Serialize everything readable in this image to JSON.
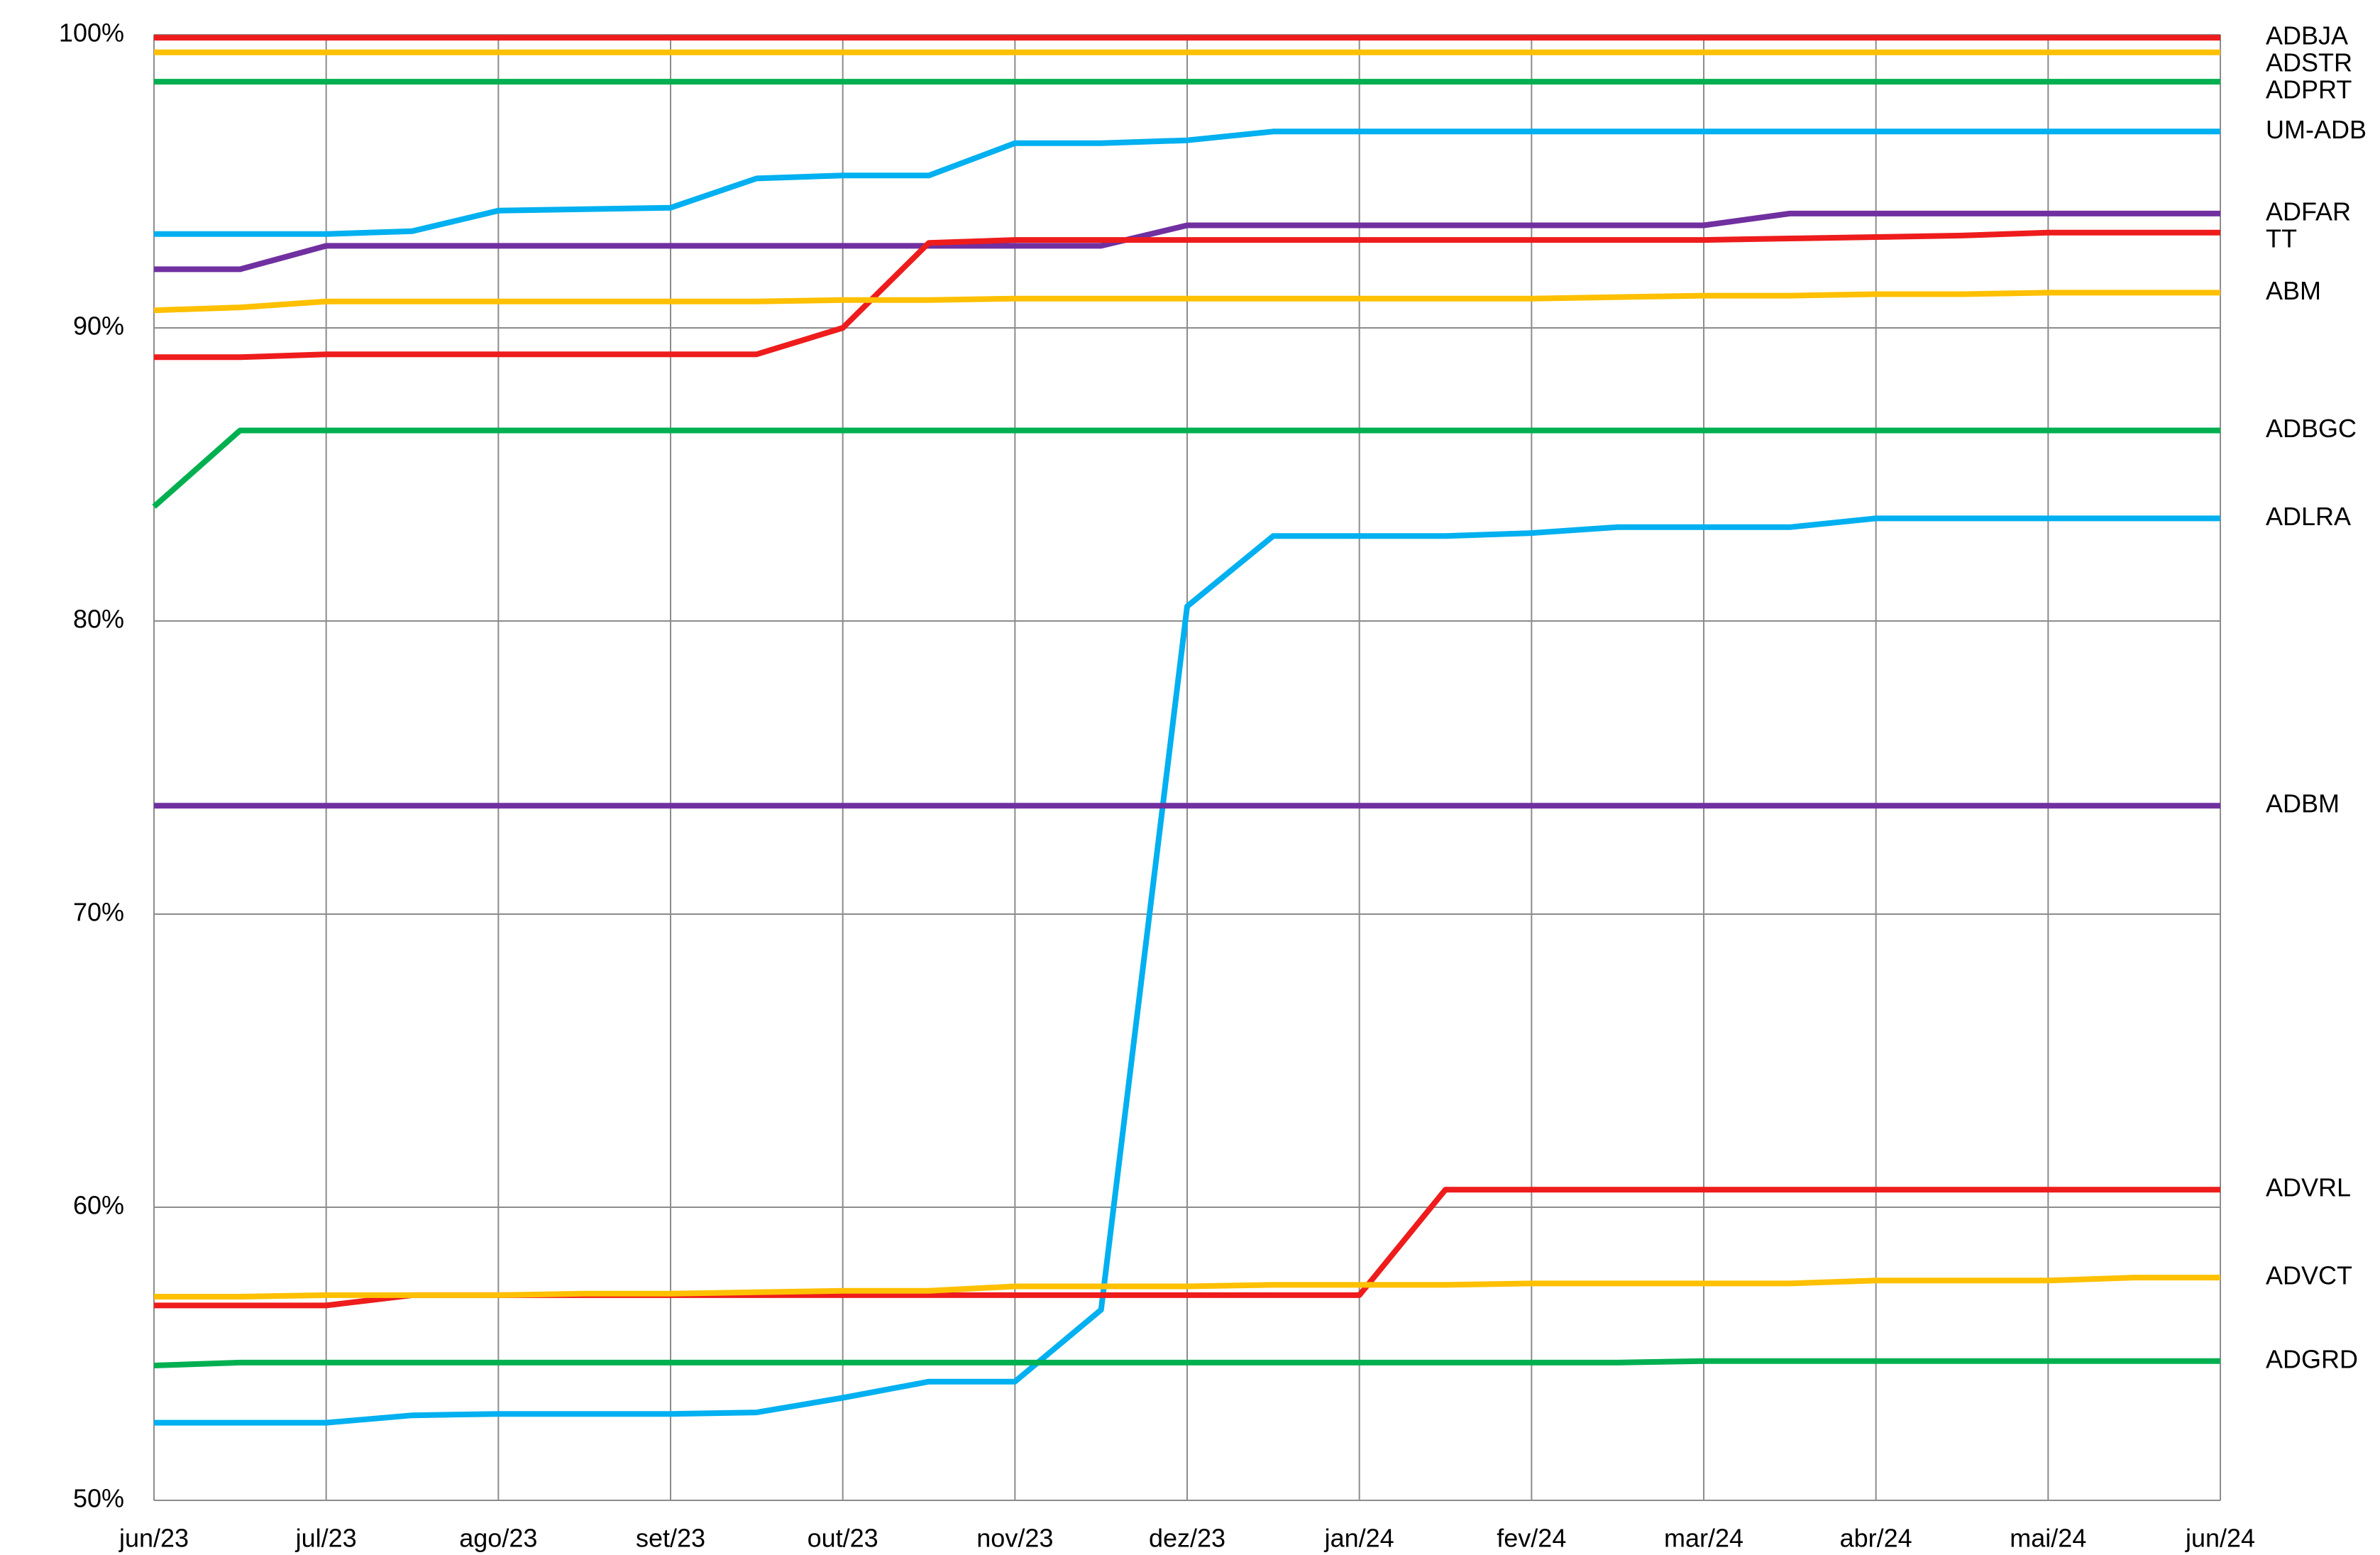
{
  "chart_data": {
    "type": "line",
    "categories": [
      "jun/23",
      null,
      "jul/23",
      null,
      "ago/23",
      null,
      "set/23",
      null,
      "out/23",
      null,
      "nov/23",
      null,
      "dez/23",
      null,
      "jan/24",
      null,
      "fev/24",
      null,
      "mar/24",
      null,
      "abr/24",
      null,
      "mai/24",
      null,
      "jun/24"
    ],
    "ylim": [
      50,
      100
    ],
    "yticks": [
      {
        "value": 50,
        "label": "50%"
      },
      {
        "value": 60,
        "label": "60%"
      },
      {
        "value": 70,
        "label": "70%"
      },
      {
        "value": 80,
        "label": "80%"
      },
      {
        "value": 90,
        "label": "90%"
      },
      {
        "value": 100,
        "label": "100%"
      }
    ],
    "grid": true,
    "series": [
      {
        "name": "ADBJA",
        "color": "#ee1c1c",
        "values": [
          99.9,
          99.9,
          99.9,
          99.9,
          99.9,
          99.9,
          99.9,
          99.9,
          99.9,
          99.9,
          99.9,
          99.9,
          99.9,
          99.9,
          99.9,
          99.9,
          99.9,
          99.9,
          99.9,
          99.9,
          99.9,
          99.9,
          99.9,
          99.9,
          99.9
        ]
      },
      {
        "name": "ADSTR",
        "color": "#ffc000",
        "values": [
          99.4,
          99.4,
          99.4,
          99.4,
          99.4,
          99.4,
          99.4,
          99.4,
          99.4,
          99.4,
          99.4,
          99.4,
          99.4,
          99.4,
          99.4,
          99.4,
          99.4,
          99.4,
          99.4,
          99.4,
          99.4,
          99.4,
          99.4,
          99.4,
          99.4
        ]
      },
      {
        "name": "ADPRT",
        "color": "#00b050",
        "values": [
          98.4,
          98.4,
          98.4,
          98.4,
          98.4,
          98.4,
          98.4,
          98.4,
          98.4,
          98.4,
          98.4,
          98.4,
          98.4,
          98.4,
          98.4,
          98.4,
          98.4,
          98.4,
          98.4,
          98.4,
          98.4,
          98.4,
          98.4,
          98.4,
          98.4
        ]
      },
      {
        "name": "UM-ADB",
        "color": "#00b0f0",
        "values": [
          93.2,
          93.2,
          93.2,
          93.3,
          94.0,
          94.05,
          94.1,
          95.1,
          95.2,
          95.2,
          96.3,
          96.3,
          96.4,
          96.7,
          96.7,
          96.7,
          96.7,
          96.7,
          96.7,
          96.7,
          96.7,
          96.7,
          96.7,
          96.7,
          96.7
        ]
      },
      {
        "name": "ADFAR",
        "color": "#7030a0",
        "values": [
          92.0,
          92.0,
          92.8,
          92.8,
          92.8,
          92.8,
          92.8,
          92.8,
          92.8,
          92.8,
          92.8,
          92.8,
          93.5,
          93.5,
          93.5,
          93.5,
          93.5,
          93.5,
          93.5,
          93.9,
          93.9,
          93.9,
          93.9,
          93.9,
          93.9
        ]
      },
      {
        "name": "TT",
        "color": "#ee1c1c",
        "values": [
          89.0,
          89.0,
          89.1,
          89.1,
          89.1,
          89.1,
          89.1,
          89.1,
          90.0,
          92.9,
          93.0,
          93.0,
          93.0,
          93.0,
          93.0,
          93.0,
          93.0,
          93.0,
          93.0,
          93.05,
          93.1,
          93.15,
          93.25,
          93.25,
          93.25
        ]
      },
      {
        "name": "ABM",
        "color": "#ffc000",
        "values": [
          90.6,
          90.7,
          90.9,
          90.9,
          90.9,
          90.9,
          90.9,
          90.9,
          90.95,
          90.95,
          91.0,
          91.0,
          91.0,
          91.0,
          91.0,
          91.0,
          91.0,
          91.05,
          91.1,
          91.1,
          91.15,
          91.15,
          91.2,
          91.2,
          91.2
        ]
      },
      {
        "name": "ADBGC",
        "color": "#00b050",
        "values": [
          83.9,
          86.5,
          86.5,
          86.5,
          86.5,
          86.5,
          86.5,
          86.5,
          86.5,
          86.5,
          86.5,
          86.5,
          86.5,
          86.5,
          86.5,
          86.5,
          86.5,
          86.5,
          86.5,
          86.5,
          86.5,
          86.5,
          86.5,
          86.5,
          86.5
        ]
      },
      {
        "name": "ADLRA",
        "color": "#00b0f0",
        "values": [
          52.65,
          52.65,
          52.65,
          52.9,
          52.95,
          52.95,
          52.95,
          53.0,
          53.5,
          54.05,
          54.05,
          56.5,
          80.5,
          82.9,
          82.9,
          82.9,
          83.0,
          83.2,
          83.2,
          83.2,
          83.5,
          83.5,
          83.5,
          83.5,
          83.5
        ]
      },
      {
        "name": "ADBM",
        "color": "#7030a0",
        "values": [
          73.7,
          73.7,
          73.7,
          73.7,
          73.7,
          73.7,
          73.7,
          73.7,
          73.7,
          73.7,
          73.7,
          73.7,
          73.7,
          73.7,
          73.7,
          73.7,
          73.7,
          73.7,
          73.7,
          73.7,
          73.7,
          73.7,
          73.7,
          73.7,
          73.7
        ]
      },
      {
        "name": "ADVRL",
        "color": "#ee1c1c",
        "values": [
          56.65,
          56.65,
          56.65,
          57.0,
          57.0,
          57.0,
          57.0,
          57.0,
          57.0,
          57.0,
          57.0,
          57.0,
          57.0,
          57.0,
          57.0,
          60.6,
          60.6,
          60.6,
          60.6,
          60.6,
          60.6,
          60.6,
          60.6,
          60.6,
          60.6
        ]
      },
      {
        "name": "ADVCT",
        "color": "#ffc000",
        "values": [
          56.95,
          56.95,
          57.0,
          57.0,
          57.0,
          57.05,
          57.05,
          57.1,
          57.15,
          57.15,
          57.3,
          57.3,
          57.3,
          57.35,
          57.35,
          57.35,
          57.4,
          57.4,
          57.4,
          57.4,
          57.5,
          57.5,
          57.5,
          57.6,
          57.6
        ]
      },
      {
        "name": "ADGRD",
        "color": "#00b050",
        "values": [
          54.6,
          54.7,
          54.7,
          54.7,
          54.7,
          54.7,
          54.7,
          54.7,
          54.7,
          54.7,
          54.7,
          54.7,
          54.7,
          54.7,
          54.7,
          54.7,
          54.7,
          54.7,
          54.75,
          54.75,
          54.75,
          54.75,
          54.75,
          54.75,
          54.75
        ]
      }
    ]
  }
}
